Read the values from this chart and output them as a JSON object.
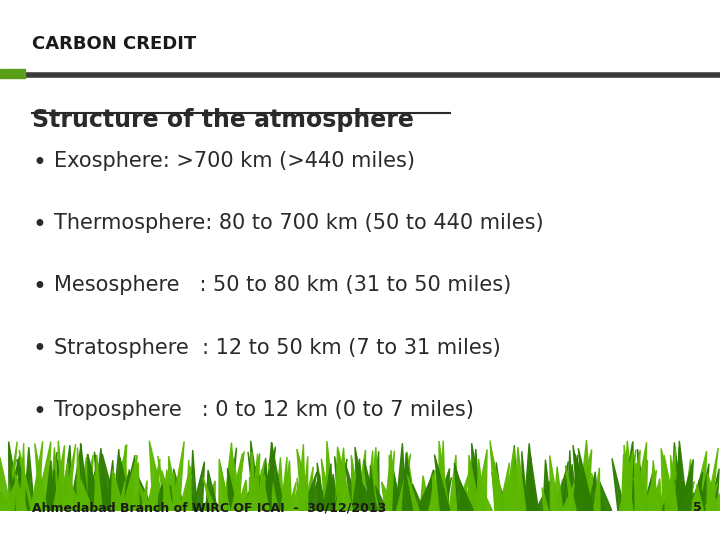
{
  "title": "CARBON CREDIT",
  "title_color": "#1a1a1a",
  "title_fontsize": 13,
  "title_bold": true,
  "header_line_green": "#5a9e1a",
  "header_line_dark": "#3a3a3a",
  "section_title": "Structure of the atmosphere",
  "section_title_fontsize": 17,
  "section_title_color": "#2a2a2a",
  "bullet_items": [
    "Exosphere: >700 km (>440 miles)",
    "Thermosphere: 80 to 700 km (50 to 440 miles)",
    "Mesosphere   : 50 to 80 km (31 to 50 miles)",
    "Stratosphere  : 12 to 50 km (7 to 31 miles)",
    "Troposphere   : 0 to 12 km (0 to 7 miles)"
  ],
  "bullet_fontsize": 15,
  "bullet_color": "#2a2a2a",
  "footer_text": "Ahmedabad Branch of WIRC OF ICAI  -  30/12/2013",
  "footer_page": "5",
  "footer_color": "#1a1a1a",
  "footer_fontsize": 9,
  "bg_color": "#ffffff",
  "grass_color_light": "#5cb800",
  "grass_color_dark": "#2e7d00"
}
